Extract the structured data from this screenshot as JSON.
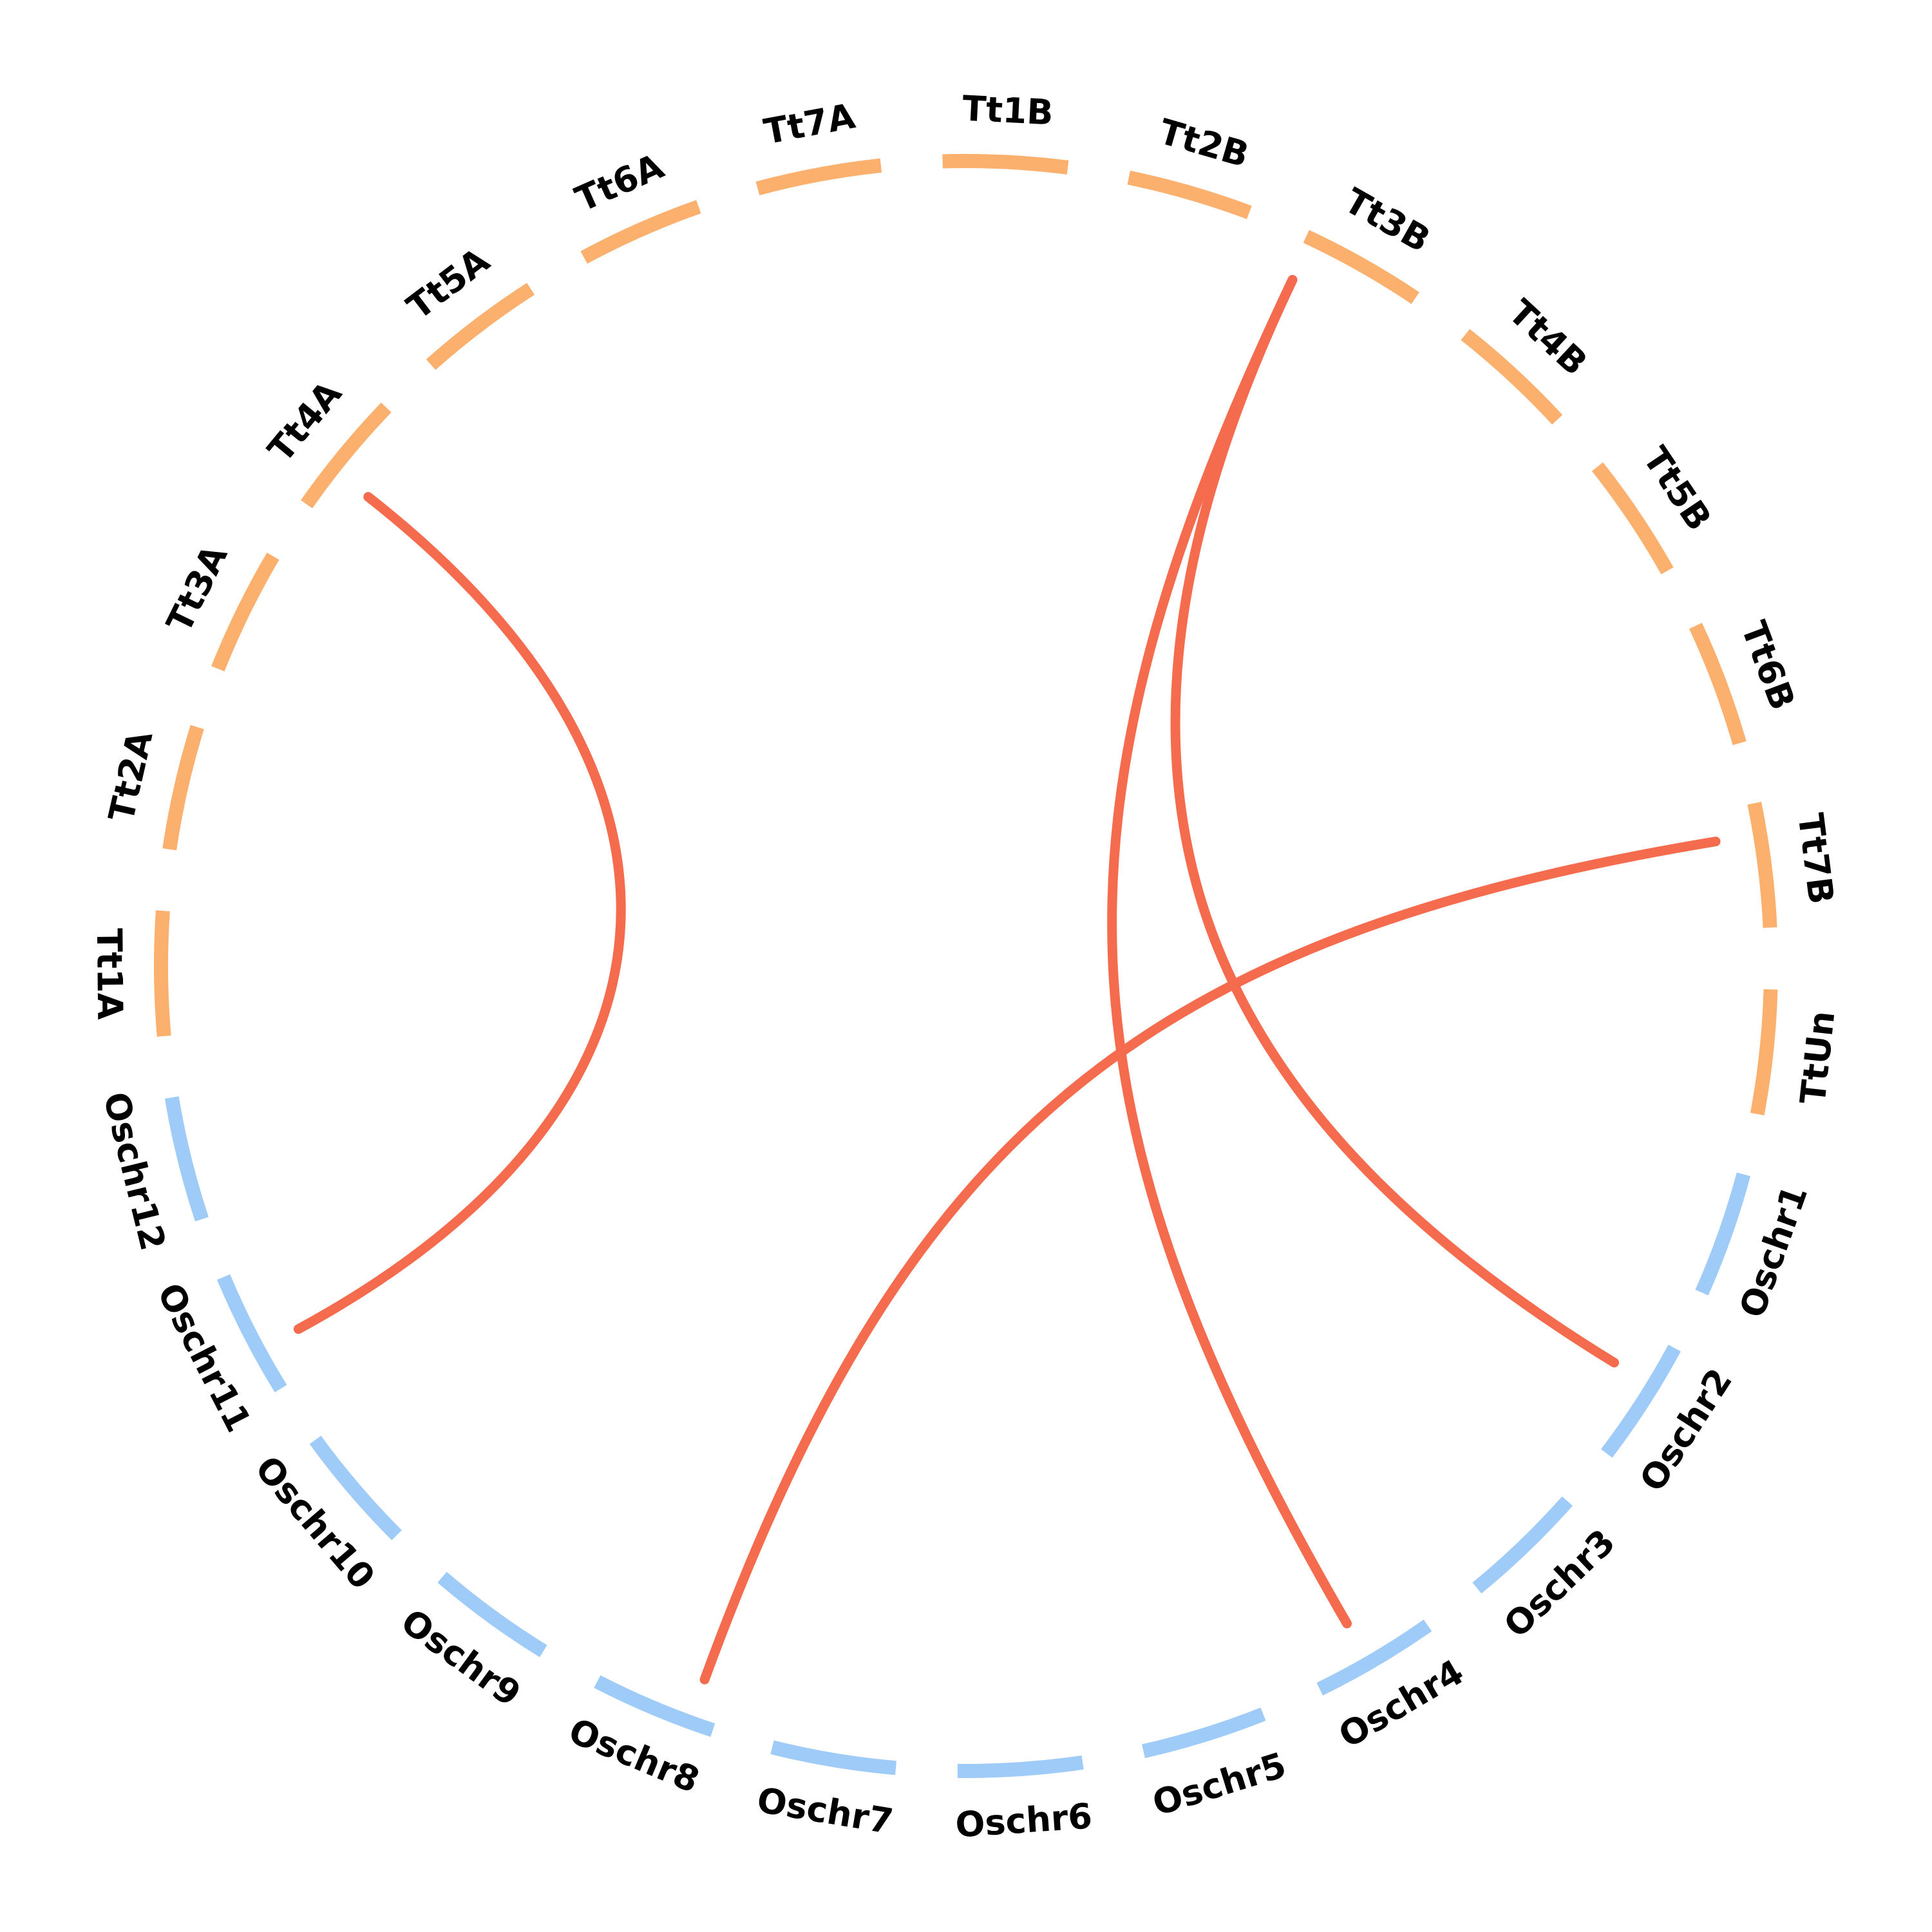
{
  "colors": {
    "oryza": "#9ECBF7",
    "triticum": "#FCB06E",
    "link": "#F56B4E",
    "label": "#000000"
  },
  "segments": [
    {
      "name": "Tt1A",
      "group": "triticum"
    },
    {
      "name": "Tt2A",
      "group": "triticum"
    },
    {
      "name": "Tt3A",
      "group": "triticum"
    },
    {
      "name": "Tt4A",
      "group": "triticum"
    },
    {
      "name": "Tt5A",
      "group": "triticum"
    },
    {
      "name": "Tt6A",
      "group": "triticum"
    },
    {
      "name": "Tt7A",
      "group": "triticum"
    },
    {
      "name": "Tt1B",
      "group": "triticum"
    },
    {
      "name": "Tt2B",
      "group": "triticum"
    },
    {
      "name": "Tt3B",
      "group": "triticum"
    },
    {
      "name": "Tt4B",
      "group": "triticum"
    },
    {
      "name": "Tt5B",
      "group": "triticum"
    },
    {
      "name": "Tt6B",
      "group": "triticum"
    },
    {
      "name": "Tt7B",
      "group": "triticum"
    },
    {
      "name": "TtUn",
      "group": "triticum"
    },
    {
      "name": "Oschr1",
      "group": "oryza"
    },
    {
      "name": "Oschr2",
      "group": "oryza"
    },
    {
      "name": "Oschr3",
      "group": "oryza"
    },
    {
      "name": "Oschr4",
      "group": "oryza"
    },
    {
      "name": "Oschr5",
      "group": "oryza"
    },
    {
      "name": "Oschr6",
      "group": "oryza"
    },
    {
      "name": "Oschr7",
      "group": "oryza"
    },
    {
      "name": "Oschr8",
      "group": "oryza"
    },
    {
      "name": "Oschr9",
      "group": "oryza"
    },
    {
      "name": "Oschr10",
      "group": "oryza"
    },
    {
      "name": "Oschr11",
      "group": "oryza"
    },
    {
      "name": "Oschr12",
      "group": "oryza"
    }
  ],
  "links": [
    {
      "from": "Oschr11",
      "to": "Tt4A"
    },
    {
      "from": "Oschr8",
      "to": "Tt7B"
    },
    {
      "from": "Oschr4",
      "to": "Tt3B"
    },
    {
      "from": "Oschr2",
      "to": "Tt3B"
    }
  ]
}
